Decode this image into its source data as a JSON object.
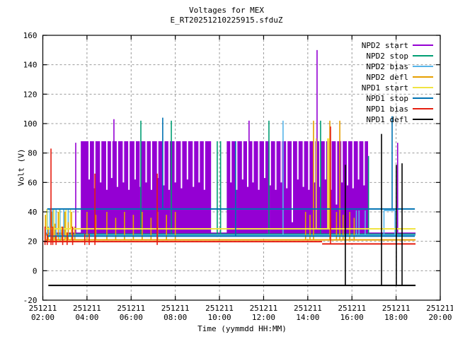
{
  "window": {
    "title": "Voltages for MEX",
    "subtitle": "E_RT20251210225915.sfduZ"
  },
  "axes": {
    "x_label": "Time (yymmdd HH:MM)",
    "y_label": "Volt (V)",
    "x_tick_date": "251211",
    "x_ticks": [
      "02:00",
      "04:00",
      "06:00",
      "08:00",
      "10:00",
      "12:00",
      "14:00",
      "16:00",
      "18:00",
      "20:00"
    ],
    "x_tick_hours": [
      2,
      4,
      6,
      8,
      10,
      12,
      14,
      16,
      18,
      20
    ],
    "y_ticks": [
      -20,
      0,
      20,
      40,
      60,
      80,
      100,
      120,
      140,
      160
    ]
  },
  "legend": {
    "entries": [
      {
        "label": "NPD2 start",
        "color": "#9400D3"
      },
      {
        "label": "NPD2 stop",
        "color": "#009E73"
      },
      {
        "label": "NPD2 bias",
        "color": "#56B4E9"
      },
      {
        "label": "NPD2 defl",
        "color": "#E69F00"
      },
      {
        "label": "NPD1 start",
        "color": "#F0E442"
      },
      {
        "label": "NPD1 stop",
        "color": "#0072B2"
      },
      {
        "label": "NPD1 bias",
        "color": "#E51E10"
      },
      {
        "label": "NPD1 defl",
        "color": "#000000"
      }
    ]
  },
  "chart_data": {
    "type": "line",
    "title": "Voltages for MEX",
    "subtitle": "E_RT20251210225915.sfduZ",
    "xlabel": "Time (yymmdd HH:MM)",
    "ylabel": "Volt (V)",
    "x_unit": "time of day on yymmdd 251211, decimal hours",
    "xlim_hours": [
      2,
      20
    ],
    "ylim": [
      -20,
      160
    ],
    "grid": true,
    "legend_position": "top-right-inside",
    "grid_color": "#9a9a9a",
    "series": [
      {
        "name": "NPD2 start",
        "color": "#9400D3",
        "hlines": [
          {
            "t1": 2.15,
            "t2": 18.88,
            "v": 25.5
          }
        ],
        "blocks": [
          {
            "t1": 3.72,
            "t2": 9.62,
            "v1": 24,
            "v2": 88,
            "note": "dense oscillation 24-88 V"
          },
          {
            "t1": 10.33,
            "t2": 16.73,
            "v1": 24,
            "v2": 88,
            "note": "dense oscillation 24-88 V"
          }
        ],
        "slits": [
          [
            4.1,
            62
          ],
          [
            4.35,
            56
          ],
          [
            4.62,
            60
          ],
          [
            4.9,
            55
          ],
          [
            5.12,
            63
          ],
          [
            5.38,
            57
          ],
          [
            5.65,
            60
          ],
          [
            5.9,
            55
          ],
          [
            6.18,
            62
          ],
          [
            6.42,
            57
          ],
          [
            6.68,
            60
          ],
          [
            6.92,
            55
          ],
          [
            7.2,
            63
          ],
          [
            7.48,
            58
          ],
          [
            7.72,
            55
          ],
          [
            8.0,
            60
          ],
          [
            8.28,
            56
          ],
          [
            8.55,
            62
          ],
          [
            8.82,
            57
          ],
          [
            9.08,
            60
          ],
          [
            9.32,
            55
          ],
          [
            10.52,
            60
          ],
          [
            10.78,
            55
          ],
          [
            11.05,
            62
          ],
          [
            11.28,
            57
          ],
          [
            11.52,
            60
          ],
          [
            11.78,
            55
          ],
          [
            12.05,
            63
          ],
          [
            12.3,
            58
          ],
          [
            12.55,
            55
          ],
          [
            12.8,
            60
          ],
          [
            13.05,
            56
          ],
          [
            13.3,
            33
          ],
          [
            13.55,
            62
          ],
          [
            13.8,
            57
          ],
          [
            14.05,
            55
          ],
          [
            14.3,
            60
          ],
          [
            14.55,
            57
          ],
          [
            14.8,
            62
          ],
          [
            15.05,
            55
          ],
          [
            15.3,
            45
          ],
          [
            15.55,
            60
          ],
          [
            15.8,
            58
          ],
          [
            16.05,
            56
          ],
          [
            16.3,
            62
          ],
          [
            16.55,
            58
          ]
        ],
        "vlines": [
          {
            "t": 3.49,
            "v1": 25.5,
            "v2": 87
          },
          {
            "t": 5.22,
            "v1": 88,
            "v2": 103
          },
          {
            "t": 11.34,
            "v1": 88,
            "v2": 102
          },
          {
            "t": 14.42,
            "v1": 88,
            "v2": 150
          },
          {
            "t": 18.07,
            "v1": 26,
            "v2": 87
          }
        ]
      },
      {
        "name": "NPD2 stop",
        "color": "#009E73",
        "hlines": [
          {
            "t1": 2.15,
            "t2": 18.88,
            "v": 24.8
          }
        ],
        "vlines": [
          {
            "t": 6.44,
            "v1": 24.8,
            "v2": 102
          },
          {
            "t": 7.82,
            "v1": 24.8,
            "v2": 102
          },
          {
            "t": 9.9,
            "v1": 23,
            "v2": 88
          },
          {
            "t": 10.05,
            "v1": 23,
            "v2": 88
          },
          {
            "t": 12.24,
            "v1": 24.8,
            "v2": 102
          },
          {
            "t": 14.58,
            "v1": 24.8,
            "v2": 102
          },
          {
            "t": 16.75,
            "v1": 24.8,
            "v2": 78
          }
        ]
      },
      {
        "name": "NPD2 bias",
        "color": "#56B4E9",
        "hlines": [
          {
            "t1": 2.15,
            "t2": 18.88,
            "v": 24.2
          },
          {
            "t1": 17.45,
            "t2": 17.95,
            "v": 41
          }
        ],
        "vlines": [
          {
            "t": 2.2,
            "v1": 20,
            "v2": 41.5
          },
          {
            "t": 2.32,
            "v1": 24.2,
            "v2": 41.5
          },
          {
            "t": 2.45,
            "v1": 20,
            "v2": 41.5
          },
          {
            "t": 2.6,
            "v1": 24.2,
            "v2": 41.5
          },
          {
            "t": 2.78,
            "v1": 20,
            "v2": 41.5
          },
          {
            "t": 2.95,
            "v1": 24.2,
            "v2": 41.5
          },
          {
            "t": 3.15,
            "v1": 24.2,
            "v2": 41.5
          },
          {
            "t": 12.88,
            "v1": 24.2,
            "v2": 102
          },
          {
            "t": 16.2,
            "v1": 24.2,
            "v2": 41
          },
          {
            "t": 16.32,
            "v1": 24.2,
            "v2": 41
          },
          {
            "t": 16.6,
            "v1": 24.2,
            "v2": 41
          },
          {
            "t": 17.45,
            "v1": 24.2,
            "v2": 41
          },
          {
            "t": 17.95,
            "v1": 24.2,
            "v2": 41
          }
        ]
      },
      {
        "name": "NPD2 defl",
        "color": "#E69F00",
        "hlines": [
          {
            "t1": 2.1,
            "t2": 18.88,
            "v": 21
          }
        ],
        "vlines": [
          {
            "t": 2.12,
            "v1": 21,
            "v2": 38
          },
          {
            "t": 2.25,
            "v1": 21,
            "v2": 30
          },
          {
            "t": 2.4,
            "v1": 21,
            "v2": 40
          },
          {
            "t": 2.55,
            "v1": 21,
            "v2": 32
          },
          {
            "t": 2.7,
            "v1": 21,
            "v2": 40
          },
          {
            "t": 2.85,
            "v1": 21,
            "v2": 30
          },
          {
            "t": 3.0,
            "v1": 21,
            "v2": 40
          },
          {
            "t": 3.15,
            "v1": 21,
            "v2": 33
          },
          {
            "t": 3.3,
            "v1": 21,
            "v2": 40
          },
          {
            "t": 3.45,
            "v1": 21,
            "v2": 30
          },
          {
            "t": 4.0,
            "v1": 21,
            "v2": 40
          },
          {
            "t": 4.4,
            "v1": 21,
            "v2": 38
          },
          {
            "t": 4.9,
            "v1": 21,
            "v2": 40
          },
          {
            "t": 5.3,
            "v1": 21,
            "v2": 36
          },
          {
            "t": 5.7,
            "v1": 21,
            "v2": 40
          },
          {
            "t": 6.1,
            "v1": 21,
            "v2": 38
          },
          {
            "t": 6.5,
            "v1": 21,
            "v2": 40
          },
          {
            "t": 6.9,
            "v1": 21,
            "v2": 36
          },
          {
            "t": 7.2,
            "v1": 21,
            "v2": 40
          },
          {
            "t": 7.6,
            "v1": 21,
            "v2": 38
          },
          {
            "t": 8.0,
            "v1": 21,
            "v2": 40
          },
          {
            "t": 13.9,
            "v1": 21,
            "v2": 40
          },
          {
            "t": 14.1,
            "v1": 21,
            "v2": 38
          },
          {
            "t": 14.26,
            "v1": 21,
            "v2": 102
          },
          {
            "t": 15.0,
            "v1": 21,
            "v2": 102
          },
          {
            "t": 15.3,
            "v1": 21,
            "v2": 40
          },
          {
            "t": 15.45,
            "v1": 21,
            "v2": 102
          },
          {
            "t": 15.6,
            "v1": 21,
            "v2": 38
          },
          {
            "t": 15.9,
            "v1": 21,
            "v2": 40
          },
          {
            "t": 16.1,
            "v1": 21,
            "v2": 36
          }
        ]
      },
      {
        "name": "NPD1 start",
        "color": "#F0E442",
        "hlines": [
          {
            "t1": 2.1,
            "t2": 18.88,
            "v": 28.5
          }
        ],
        "vlines": [
          {
            "t": 2.18,
            "v1": 28.5,
            "v2": 42
          },
          {
            "t": 2.5,
            "v1": 20,
            "v2": 42
          },
          {
            "t": 2.75,
            "v1": 28.5,
            "v2": 42
          },
          {
            "t": 3.05,
            "v1": 20,
            "v2": 42
          },
          {
            "t": 3.25,
            "v1": 28.5,
            "v2": 42
          },
          {
            "t": 14.38,
            "v1": 28.5,
            "v2": 90
          },
          {
            "t": 14.9,
            "v1": 28.5,
            "v2": 90
          },
          {
            "t": 14.95,
            "v1": 28.5,
            "v2": 90
          }
        ]
      },
      {
        "name": "NPD1 stop",
        "color": "#0072B2",
        "hlines": [
          {
            "t1": 2.2,
            "t2": 18.85,
            "v": 42
          },
          {
            "t1": 2.2,
            "t2": 18.85,
            "v": 23.5
          }
        ],
        "vlines": [
          {
            "t": 7.43,
            "v1": 42,
            "v2": 104
          },
          {
            "t": 10.73,
            "v1": 23.5,
            "v2": 88
          },
          {
            "t": 17.82,
            "v1": 42,
            "v2": 105
          }
        ]
      },
      {
        "name": "NPD1 bias",
        "color": "#E51E10",
        "hlines": [
          {
            "t1": 2.05,
            "t2": 14.65,
            "v": 19.8
          },
          {
            "t1": 14.65,
            "t2": 18.88,
            "v": 18.2
          }
        ],
        "vlines": [
          {
            "t": 2.1,
            "v1": 17.5,
            "v2": 30
          },
          {
            "t": 2.2,
            "v1": 17.5,
            "v2": 25
          },
          {
            "t": 2.37,
            "v1": 17.5,
            "v2": 83
          },
          {
            "t": 2.45,
            "v1": 17.5,
            "v2": 30
          },
          {
            "t": 2.6,
            "v1": 17.5,
            "v2": 24
          },
          {
            "t": 2.9,
            "v1": 17.5,
            "v2": 30
          },
          {
            "t": 3.1,
            "v1": 17.5,
            "v2": 26
          },
          {
            "t": 3.35,
            "v1": 17.5,
            "v2": 30
          },
          {
            "t": 3.9,
            "v1": 17.5,
            "v2": 25
          },
          {
            "t": 4.1,
            "v1": 17.5,
            "v2": 25
          },
          {
            "t": 4.36,
            "v1": 17.5,
            "v2": 66
          },
          {
            "t": 7.18,
            "v1": 17.5,
            "v2": 66
          },
          {
            "t": 15.03,
            "v1": 18.2,
            "v2": 98
          }
        ]
      },
      {
        "name": "NPD1 defl",
        "color": "#000000",
        "hlines": [
          {
            "t1": 2.25,
            "t2": 18.88,
            "v": -10
          }
        ],
        "vlines": [
          {
            "t": 15.7,
            "v1": -10,
            "v2": 72
          },
          {
            "t": 17.34,
            "v1": -10,
            "v2": 93
          },
          {
            "t": 18.01,
            "v1": -10,
            "v2": 72
          },
          {
            "t": 18.27,
            "v1": -10,
            "v2": 73
          }
        ]
      }
    ]
  }
}
